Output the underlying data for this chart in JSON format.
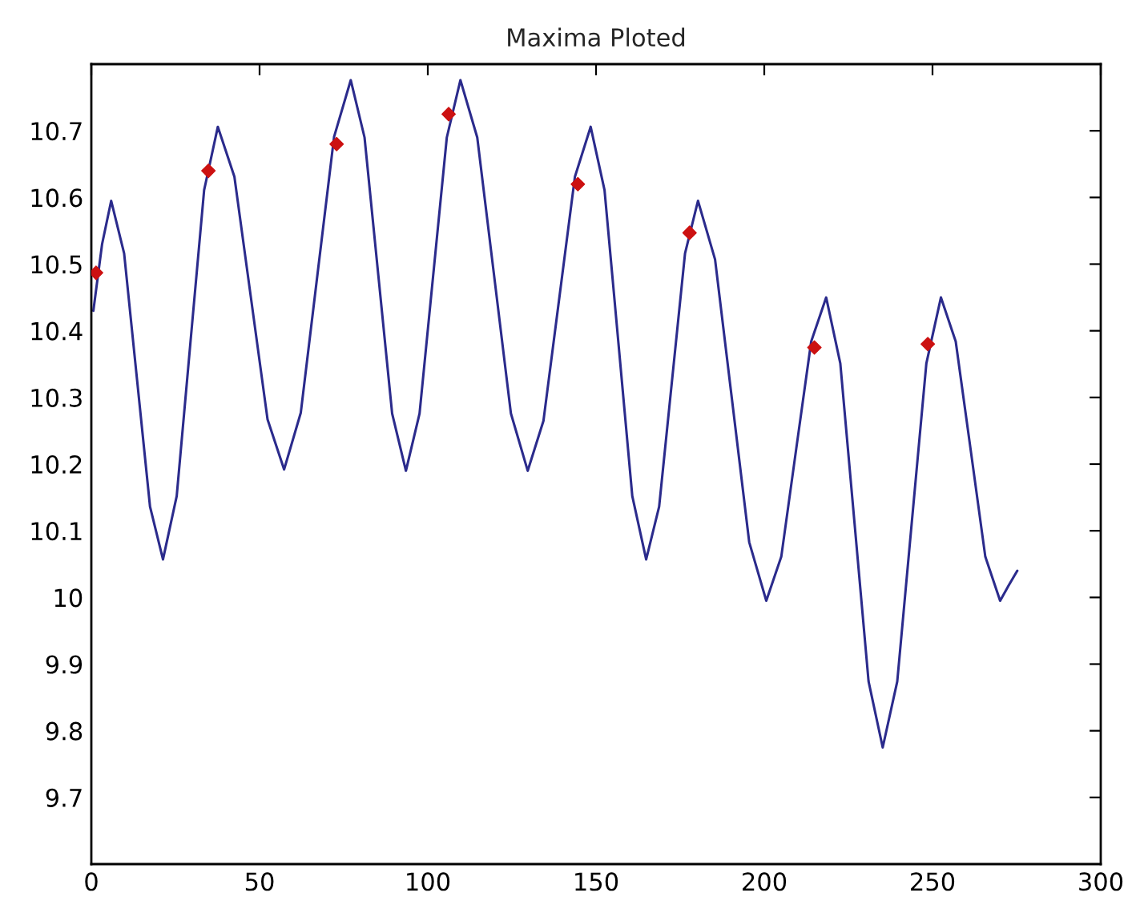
{
  "chart_data": {
    "type": "line",
    "title": "Maxima Ploted",
    "xlim": [
      0,
      300
    ],
    "xticks": [
      0,
      50,
      100,
      150,
      200,
      250,
      300
    ],
    "ylim": [
      9.6,
      10.8
    ],
    "yticks": [
      9.7,
      9.8,
      9.9,
      10,
      10.1,
      10.2,
      10.3,
      10.4,
      10.5,
      10.6,
      10.7
    ],
    "grid": false,
    "legend": false,
    "series": [
      {
        "color": "#2b2b8c",
        "marker": "none",
        "line_style": "solid",
        "x": [
          0.6,
          3.2,
          5.9,
          9.75,
          13.6,
          17.45,
          21.3,
          25.375,
          29.45,
          33.525,
          37.6,
          42.525,
          47.45,
          52.375,
          57.3,
          62.25,
          67.2,
          72.15,
          77.1,
          81.2,
          85.3,
          89.4,
          93.5,
          97.55,
          101.6,
          105.65,
          109.7,
          114.7,
          119.7,
          124.7,
          129.7,
          134.375,
          139.05,
          143.725,
          148.4,
          152.525,
          156.65,
          160.775,
          164.9,
          168.75,
          172.6,
          176.45,
          180.3,
          185.375,
          190.45,
          195.525,
          200.6,
          205.05,
          209.5,
          213.95,
          218.4,
          222.6,
          226.8,
          231.0,
          235.2,
          239.525,
          243.85,
          248.175,
          252.5,
          256.9,
          261.3,
          265.7,
          270.1,
          272.65,
          275.2
        ],
        "values": [
          10.43,
          10.53,
          10.595,
          10.516,
          10.326,
          10.136,
          10.057,
          10.152,
          10.382,
          10.611,
          10.706,
          10.631,
          10.449,
          10.267,
          10.192,
          10.277,
          10.484,
          10.691,
          10.776,
          10.69,
          10.483,
          10.276,
          10.19,
          10.276,
          10.483,
          10.69,
          10.776,
          10.69,
          10.483,
          10.276,
          10.19,
          10.265,
          10.448,
          10.631,
          10.706,
          10.611,
          10.382,
          10.152,
          10.057,
          10.136,
          10.326,
          10.516,
          10.595,
          10.507,
          10.295,
          10.083,
          9.995,
          10.061,
          10.223,
          10.384,
          10.45,
          10.351,
          10.113,
          9.874,
          9.775,
          9.874,
          10.113,
          10.351,
          10.45,
          10.384,
          10.223,
          10.061,
          9.995,
          10.018,
          10.04
        ]
      },
      {
        "type": "scatter",
        "color": "#cc1111",
        "marker": "diamond",
        "x": [
          1.4,
          34.8,
          72.9,
          106.2,
          144.6,
          177.8,
          214.9,
          248.6
        ],
        "values": [
          10.487,
          10.64,
          10.68,
          10.725,
          10.62,
          10.547,
          10.375,
          10.38
        ]
      }
    ]
  }
}
